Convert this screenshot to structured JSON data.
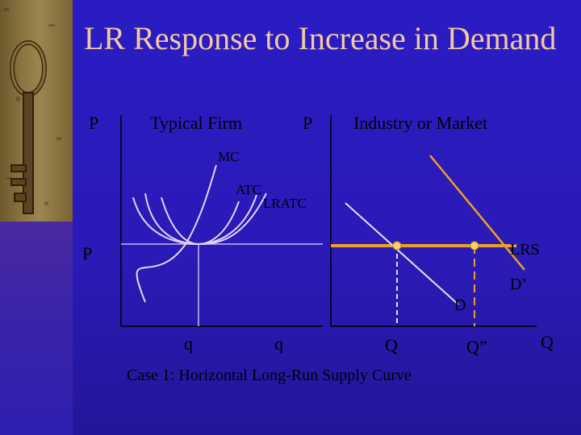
{
  "slide": {
    "title": "LR Response to Increase in Demand",
    "caption": "Case 1:  Horizontal Long-Run Supply Curve"
  },
  "firm_panel": {
    "label": "Typical Firm",
    "y_axis": "P",
    "x_axis": "q",
    "price_label": "P",
    "curves": {
      "mc": "MC",
      "atc": "ATC",
      "lratc": "LRATC"
    }
  },
  "market_panel": {
    "label": "Industry or Market",
    "y_axis": "P",
    "x_axis": "q",
    "axis_end": "Q",
    "quantities": {
      "initial": "Q",
      "new": "Q”"
    },
    "curves": {
      "supply": "LRS",
      "demand": "D",
      "new_demand": "D’"
    }
  },
  "colors": {
    "background": "#2a1cc4",
    "title": "#f2c9a0",
    "supply_line": "#f0a020",
    "cost_curves": "#d9c7f0",
    "axes": "#000000",
    "dot": "#f6d66a"
  },
  "icons": {
    "decoration": "bronze-key-icon"
  }
}
